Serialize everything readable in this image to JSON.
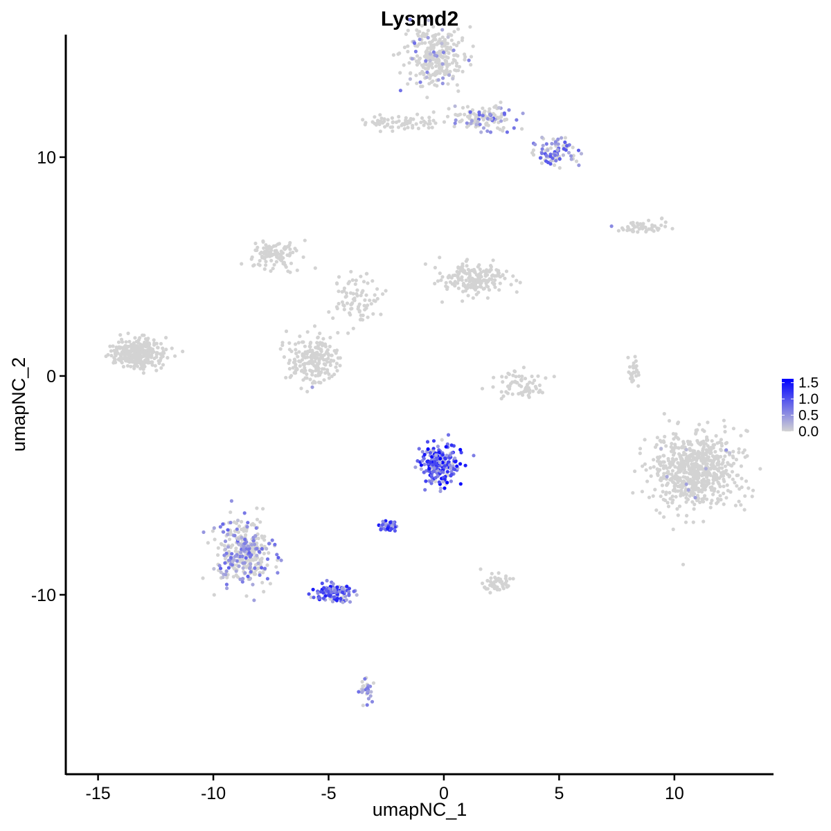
{
  "chart_data": {
    "type": "scatter",
    "title": "Lysmd2",
    "xlabel": "umapNC_1",
    "ylabel": "umapNC_2",
    "xlim": [
      -16.4,
      14.3
    ],
    "ylim": [
      -18.2,
      15.6
    ],
    "xticks": [
      -15,
      -10,
      -5,
      0,
      5,
      10
    ],
    "xtick_labels": [
      "-15",
      "-10",
      "-5",
      "0",
      "5",
      "10"
    ],
    "yticks": [
      -10,
      0,
      10
    ],
    "ytick_labels": [
      "-10",
      "0",
      "10"
    ],
    "grid": false,
    "legend": {
      "position": "right",
      "type": "colorbar",
      "labels": [
        "1.5",
        "1.0",
        "0.5",
        "0.0"
      ],
      "values": [
        1.5,
        1.0,
        0.5,
        0.0
      ],
      "range": [
        0,
        1.62
      ],
      "low_color": "#d3d3d3",
      "high_color": "#0000ff"
    },
    "colors": {
      "low": "#d3d3d3",
      "high": "#0000ff"
    },
    "clusters": [
      {
        "name": "c_top_right_upper",
        "center": [
          -0.3,
          14.5
        ],
        "spread": [
          1.1,
          1.2
        ],
        "n": 280,
        "frac_expr": 0.12,
        "expr_max": 0.8
      },
      {
        "name": "c_top_arm",
        "center": [
          1.8,
          11.8
        ],
        "spread": [
          1.4,
          0.45
        ],
        "n": 120,
        "frac_expr": 0.25,
        "expr_max": 0.9
      },
      {
        "name": "c_top_tail",
        "center": [
          4.8,
          10.2
        ],
        "spread": [
          0.8,
          0.6
        ],
        "n": 90,
        "frac_expr": 0.5,
        "expr_max": 1.0
      },
      {
        "name": "c_top_left_strip",
        "center": [
          -2.0,
          11.6
        ],
        "spread": [
          1.3,
          0.3
        ],
        "n": 70,
        "frac_expr": 0.0,
        "expr_max": 0
      },
      {
        "name": "c_far_left",
        "center": [
          -13.3,
          1.0
        ],
        "spread": [
          0.9,
          0.55
        ],
        "n": 320,
        "frac_expr": 0.0,
        "expr_max": 0
      },
      {
        "name": "c_center_left_arm",
        "center": [
          -7.3,
          5.5
        ],
        "spread": [
          0.9,
          0.55
        ],
        "n": 110,
        "frac_expr": 0.0,
        "expr_max": 0
      },
      {
        "name": "c_center_right_blob",
        "center": [
          1.3,
          4.4
        ],
        "spread": [
          1.2,
          0.6
        ],
        "n": 180,
        "frac_expr": 0.0,
        "expr_max": 0
      },
      {
        "name": "c_center_lower_left",
        "center": [
          -5.7,
          0.8
        ],
        "spread": [
          0.9,
          0.9
        ],
        "n": 210,
        "frac_expr": 0.01,
        "expr_max": 0.5
      },
      {
        "name": "c_center_stem",
        "center": [
          -3.8,
          3.5
        ],
        "spread": [
          0.8,
          1.1
        ],
        "n": 80,
        "frac_expr": 0.02,
        "expr_max": 0.5
      },
      {
        "name": "c_arc",
        "center": [
          3.3,
          -0.4
        ],
        "spread": [
          1.0,
          0.45
        ],
        "n": 70,
        "frac_expr": 0.0,
        "expr_max": 0
      },
      {
        "name": "c_big_right",
        "center": [
          10.9,
          -4.3
        ],
        "spread": [
          1.5,
          1.5
        ],
        "n": 650,
        "frac_expr": 0.02,
        "expr_max": 0.5
      },
      {
        "name": "c_right_strip",
        "center": [
          8.6,
          6.8
        ],
        "spread": [
          0.9,
          0.25
        ],
        "n": 50,
        "frac_expr": 0.04,
        "expr_max": 0.7
      },
      {
        "name": "c_high_center",
        "center": [
          -0.2,
          -4.0
        ],
        "spread": [
          0.65,
          0.75
        ],
        "n": 210,
        "frac_expr": 0.93,
        "expr_max": 1.62
      },
      {
        "name": "c_high_small",
        "center": [
          -2.4,
          -6.9
        ],
        "spread": [
          0.35,
          0.2
        ],
        "n": 45,
        "frac_expr": 0.95,
        "expr_max": 1.5
      },
      {
        "name": "c_bottom_left",
        "center": [
          -8.6,
          -8.0
        ],
        "spread": [
          1.0,
          1.2
        ],
        "n": 330,
        "frac_expr": 0.35,
        "expr_max": 0.9
      },
      {
        "name": "c_bottom_left_tail",
        "center": [
          -4.8,
          -9.9
        ],
        "spread": [
          0.7,
          0.35
        ],
        "n": 110,
        "frac_expr": 0.85,
        "expr_max": 1.45
      },
      {
        "name": "c_bottom_mid",
        "center": [
          2.3,
          -9.5
        ],
        "spread": [
          0.5,
          0.35
        ],
        "n": 50,
        "frac_expr": 0.0,
        "expr_max": 0
      },
      {
        "name": "c_bottom_small",
        "center": [
          -3.4,
          -14.4
        ],
        "spread": [
          0.25,
          0.45
        ],
        "n": 30,
        "frac_expr": 0.4,
        "expr_max": 0.9
      },
      {
        "name": "c_right_thin",
        "center": [
          8.2,
          0.2
        ],
        "spread": [
          0.15,
          0.7
        ],
        "n": 25,
        "frac_expr": 0.0,
        "expr_max": 0
      }
    ]
  }
}
